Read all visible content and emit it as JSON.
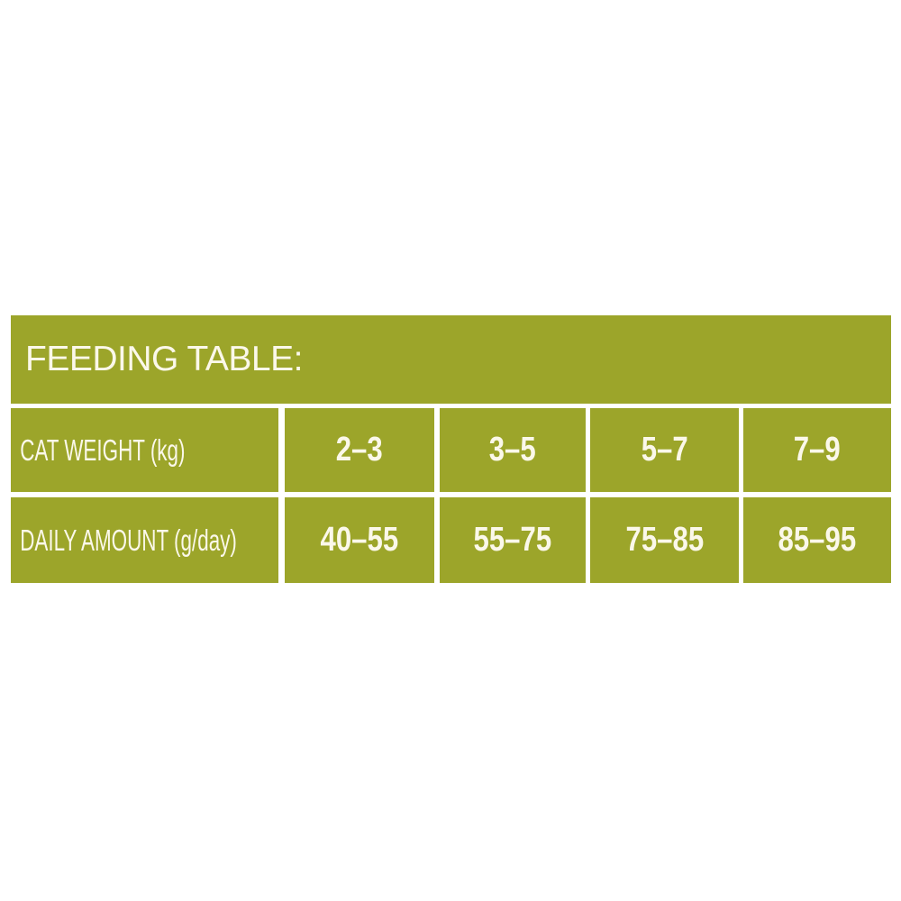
{
  "title": "FEEDING TABLE:",
  "colors": {
    "background": "#9ca52a",
    "text": "#fbf8ea",
    "divider": "#ffffff"
  },
  "rows": [
    {
      "label": "CAT WEIGHT (kg)",
      "values": [
        "2–3",
        "3–5",
        "5–7",
        "7–9"
      ]
    },
    {
      "label": "DAILY AMOUNT (g/day)",
      "values": [
        "40–55",
        "55–75",
        "75–85",
        "85–95"
      ]
    }
  ]
}
